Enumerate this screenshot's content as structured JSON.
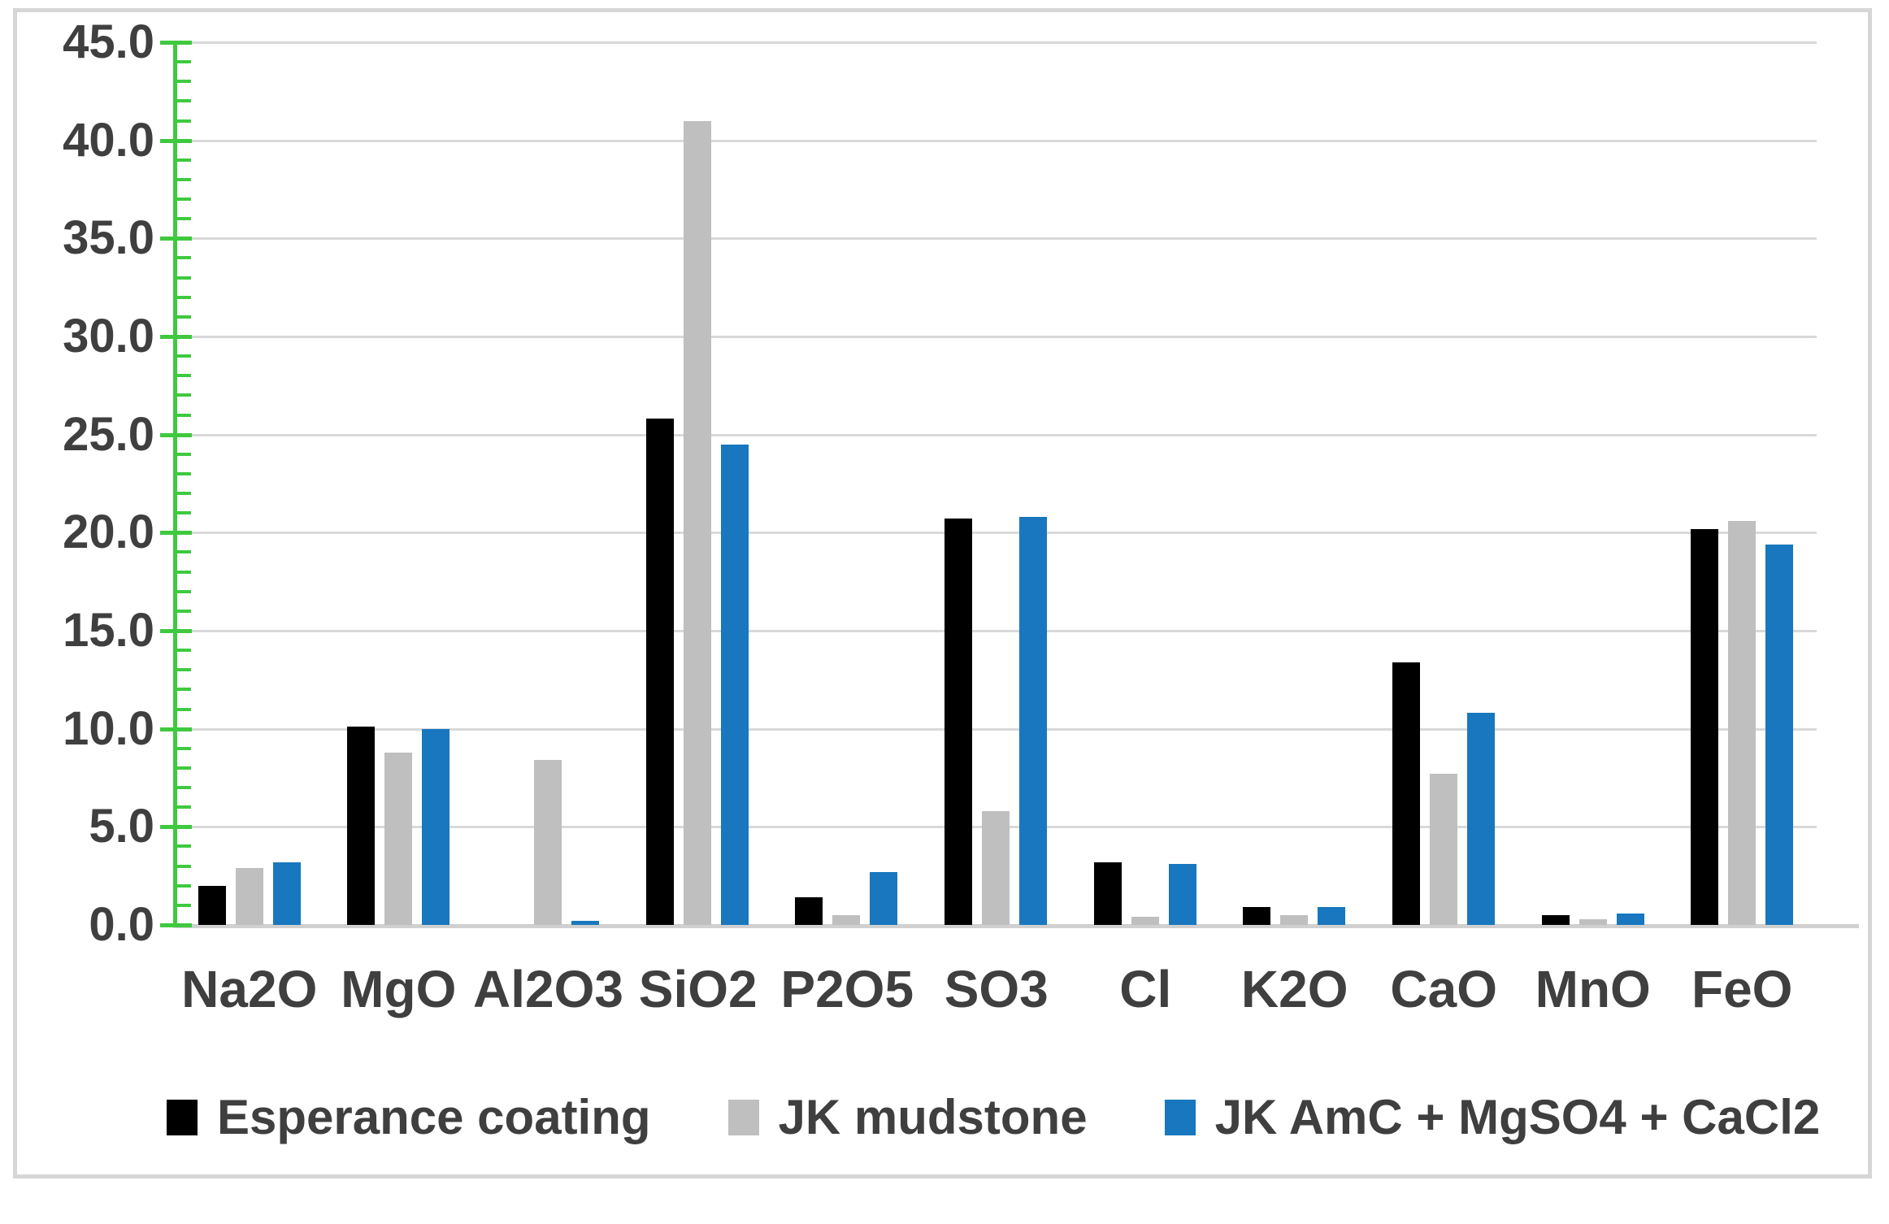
{
  "chart_data": {
    "type": "bar",
    "title": "",
    "categories": [
      "Na2O",
      "MgO",
      "Al2O3",
      "SiO2",
      "P2O5",
      "SO3",
      "Cl",
      "K2O",
      "CaO",
      "MnO",
      "FeO"
    ],
    "series": [
      {
        "name": "Esperance coating",
        "color": "#000000",
        "values": [
          2.0,
          10.1,
          0.0,
          25.8,
          1.4,
          20.7,
          3.2,
          0.9,
          13.4,
          0.5,
          20.2
        ]
      },
      {
        "name": "JK mudstone",
        "color": "#bfbfbf",
        "values": [
          2.9,
          8.8,
          8.4,
          41.0,
          0.5,
          5.8,
          0.4,
          0.5,
          7.7,
          0.3,
          20.6
        ]
      },
      {
        "name": "JK AmC + MgSO4 + CaCl2",
        "color": "#1877be",
        "values": [
          3.2,
          10.0,
          0.2,
          24.5,
          2.7,
          20.8,
          3.1,
          0.9,
          10.8,
          0.6,
          19.4
        ]
      }
    ],
    "ylim": [
      0,
      45
    ],
    "ytick_step": 5,
    "minor_tick_step": 1,
    "ytick_labels": [
      "45.0",
      "40.0",
      "35.0",
      "30.0",
      "25.0",
      "20.0",
      "15.0",
      "10.0",
      "5.0",
      "0.0"
    ],
    "grid": true,
    "legend_position": "bottom",
    "colors": {
      "axis_green": "#3fc93f",
      "gridline": "#d9d9d9",
      "baseline": "#d0d0d0",
      "label_text": "#3f3f3f",
      "frame_border": "#d6d6d6"
    }
  }
}
